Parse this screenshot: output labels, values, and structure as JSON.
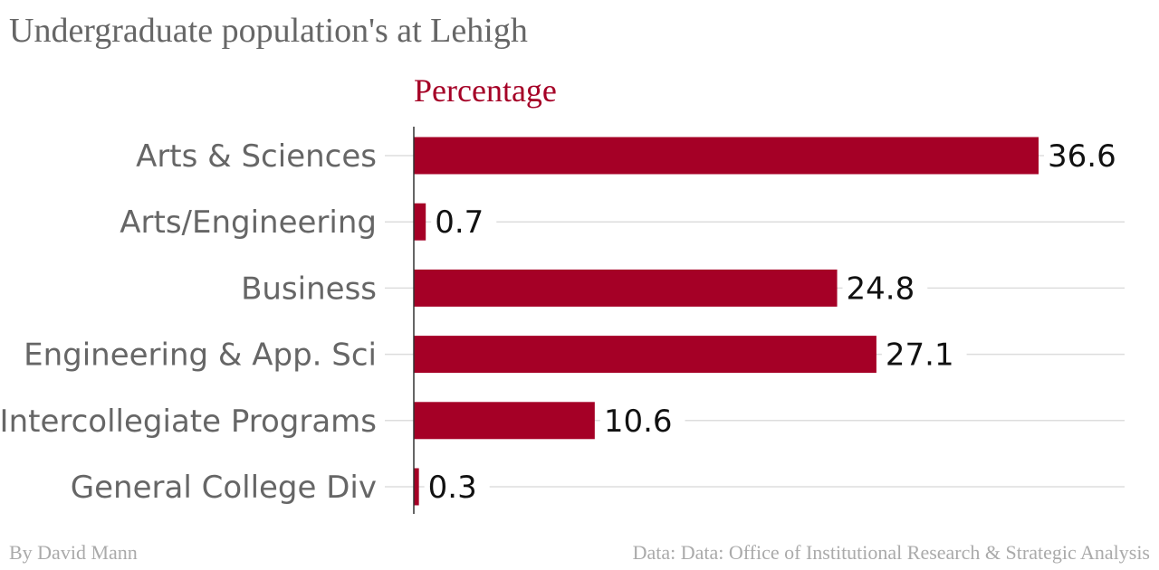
{
  "title": "Undergraduate population's at Lehigh",
  "byline": "By David Mann",
  "source": "Data: Data: Office of Institutional Research & Strategic Analysis",
  "colors": {
    "bar": "#a50026",
    "title": "#666666",
    "footer": "#aaaaaa",
    "grid": "#dddddd",
    "axis": "#333333"
  },
  "chart_data": {
    "type": "bar",
    "orientation": "horizontal",
    "series_title": "Percentage",
    "categories": [
      "Arts & Sciences",
      "Arts/Engineering",
      "Business",
      "Engineering & App. Sci",
      "Intercollegiate Programs",
      "General College Div"
    ],
    "series": [
      {
        "name": "Percentage",
        "values": [
          36.6,
          0.7,
          24.8,
          27.1,
          10.6,
          0.3
        ]
      }
    ],
    "value_labels": [
      "36.6",
      "0.7",
      "24.8",
      "27.1",
      "10.6",
      "0.3"
    ],
    "xlim": [
      0,
      36.6
    ],
    "grid": true,
    "legend": "none"
  }
}
